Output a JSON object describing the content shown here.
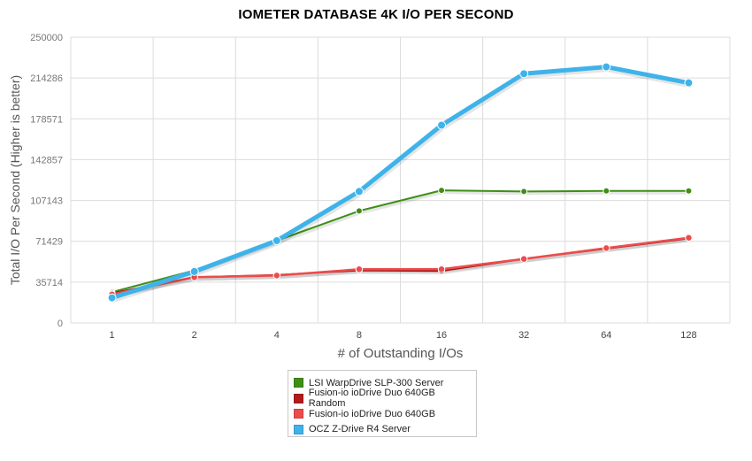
{
  "chart_data": {
    "type": "line",
    "title": "IOMETER DATABASE 4K I/O PER SECOND",
    "xlabel": "# of Outstanding I/Os",
    "ylabel": "Total I/O Per Second (Higher is better)",
    "categories": [
      "1",
      "2",
      "4",
      "8",
      "16",
      "32",
      "64",
      "128"
    ],
    "ylim": [
      0,
      250000
    ],
    "yticks": [
      "0",
      "35714",
      "71429",
      "107143",
      "142857",
      "178571",
      "214286",
      "250000"
    ],
    "grid": true,
    "legend_position": "bottom",
    "series": [
      {
        "name": "LSI WarpDrive SLP-300 Server",
        "color": "#3f8f16",
        "width": 2,
        "marker": 6,
        "values": [
          27000,
          46000,
          72000,
          98000,
          116000,
          115000,
          115500,
          115500
        ]
      },
      {
        "name": "Fusion-io ioDrive Duo 640GB Random",
        "color": "#b31b1b",
        "width": 2,
        "marker": 6,
        "values": [
          26000,
          40000,
          42000,
          46000,
          45500,
          56000,
          65000,
          74000
        ]
      },
      {
        "name": "Fusion-io ioDrive Duo 640GB",
        "color": "#ee4b4b",
        "width": 2.5,
        "marker": 6.5,
        "values": [
          25000,
          40000,
          41500,
          47000,
          47000,
          56000,
          65500,
          74500
        ]
      },
      {
        "name": "OCZ Z-Drive R4 Server",
        "color": "#3eb3ea",
        "width": 5,
        "marker": 8,
        "values": [
          22000,
          45000,
          72000,
          115000,
          173000,
          218000,
          224000,
          210000
        ]
      }
    ]
  }
}
